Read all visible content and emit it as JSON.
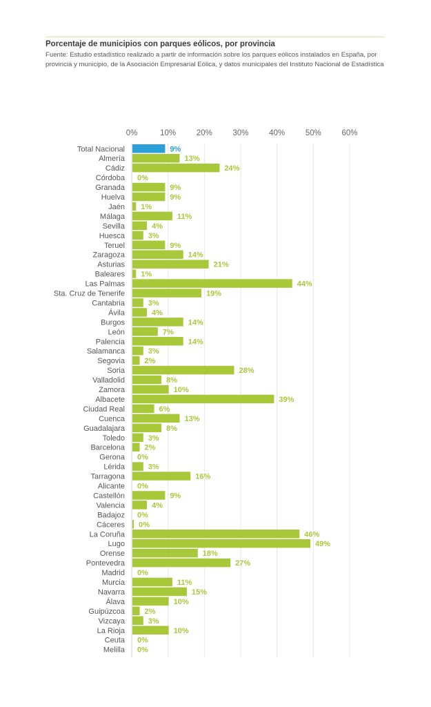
{
  "chart_data": {
    "type": "bar",
    "orientation": "horizontal",
    "title": "Porcentaje de municipios con parques eólicos, por provincia",
    "subtitle": "Fuente: Estudio estadístico realizado a partir de información sobre los parques eólicos instalados en España, por provincia y municipio, de la Asociación Empresarial Eólica, y datos municipales del Instituto Nacional de Estadística",
    "xlabel": "",
    "ylabel": "",
    "xlim": [
      0,
      60
    ],
    "x_ticks": [
      "0%",
      "10%",
      "20%",
      "30%",
      "40%",
      "50%",
      "60%"
    ],
    "grid": true,
    "highlight_color": "#2a9fd8",
    "bar_color": "#a8c83a",
    "label_color": "#a8c83a",
    "categories": [
      "Total Nacional",
      "Almería",
      "Cádiz",
      "Córdoba",
      "Granada",
      "Huelva",
      "Jaén",
      "Málaga",
      "Sevilla",
      "Huesca",
      "Teruel",
      "Zaragoza",
      "Asturias",
      "Baleares",
      "Las Palmas",
      "Sta. Cruz de Tenerife",
      "Cantabria",
      "Ávila",
      "Burgos",
      "León",
      "Palencia",
      "Salamanca",
      "Segovia",
      "Soria",
      "Valladolid",
      "Zamora",
      "Albacete",
      "Ciudad Real",
      "Cuenca",
      "Guadalajara",
      "Toledo",
      "Barcelona",
      "Gerona",
      "Lérida",
      "Tarragona",
      "Alicante",
      "Castellón",
      "Valencia",
      "Badajoz",
      "Cáceres",
      "La Coruña",
      "Lugo",
      "Orense",
      "Pontevedra",
      "Madrid",
      "Murcia",
      "Navarra",
      "Álava",
      "Guipúzcoa",
      "Vizcaya",
      "La Rioja",
      "Ceuta",
      "Melilla"
    ],
    "values": [
      9,
      13,
      24,
      0,
      9,
      9,
      1,
      11,
      4,
      3,
      9,
      14,
      21,
      1,
      44,
      19,
      3,
      4,
      14,
      7,
      14,
      3,
      2,
      28,
      8,
      10,
      39,
      6,
      13,
      8,
      3,
      2,
      0,
      3,
      16,
      0,
      9,
      4,
      0,
      0.4,
      46,
      49,
      18,
      27,
      0,
      11,
      15,
      10,
      2,
      3,
      10,
      0,
      0
    ],
    "labels": [
      "9%",
      "13%",
      "24%",
      "0%",
      "9%",
      "9%",
      "1%",
      "11%",
      "4%",
      "3%",
      "9%",
      "14%",
      "21%",
      "1%",
      "44%",
      "19%",
      "3%",
      "4%",
      "14%",
      "7%",
      "14%",
      "3%",
      "2%",
      "28%",
      "8%",
      "10%",
      "39%",
      "6%",
      "13%",
      "8%",
      "3%",
      "2%",
      "0%",
      "3%",
      "16%",
      "0%",
      "9%",
      "4%",
      "0%",
      "0%",
      "46%",
      "49%",
      "18%",
      "27%",
      "0%",
      "11%",
      "15%",
      "10%",
      "2%",
      "3%",
      "10%",
      "0%",
      "0%"
    ],
    "highlighted": [
      "Total Nacional"
    ]
  }
}
